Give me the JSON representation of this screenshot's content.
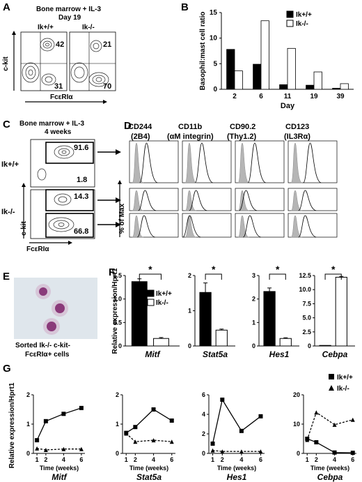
{
  "panel_labels": {
    "A": "A",
    "B": "B",
    "C": "C",
    "D": "D",
    "E": "E",
    "F": "F",
    "G": "G"
  },
  "panelA": {
    "title_line1": "Bone marrow + IL-3",
    "title_line2": "Day 19",
    "wt_label": "Ik+/+",
    "ko_label": "Ik-/-",
    "y_axis": "c-kit",
    "x_axis": "FcεRIα",
    "wt_values": {
      "upper": "42",
      "lower": "31"
    },
    "ko_values": {
      "upper": "21",
      "lower": "70"
    }
  },
  "panelC": {
    "title_line1": "Bone marrow + IL-3",
    "title_line2": "4 weeks",
    "wt_label": "Ik+/+",
    "ko_label": "Ik-/-",
    "y_axis": "c-kit",
    "x_axis": "FcεRIα",
    "wt_values": {
      "gate": "91.6",
      "lower": "1.8"
    },
    "ko_values": {
      "upper": "14.3",
      "lower": "66.8"
    }
  },
  "panelD": {
    "markers": [
      {
        "name": "CD244",
        "sub": "(2B4)"
      },
      {
        "name": "CD11b",
        "sub": "(αM integrin)"
      },
      {
        "name": "CD90.2",
        "sub": "(Thy1.2)"
      },
      {
        "name": "CD123",
        "sub": "(IL3Rα)"
      }
    ],
    "y_axis": "% of Max"
  },
  "panelE": {
    "caption_line1": "Sorted Ik-/- c-kit-",
    "caption_line2": "FcεRIα+ cells"
  },
  "colors": {
    "wt": "#000000",
    "ko": "#ffffff",
    "isotype": "#b5b5b5",
    "cell": "#8a3a7a"
  },
  "chart_data": [
    {
      "type": "bar",
      "panel": "B",
      "categories": [
        "2",
        "6",
        "11",
        "19",
        "39"
      ],
      "series": [
        {
          "name": "Ik+/+",
          "values": [
            7.8,
            4.9,
            0.9,
            0.8,
            0.2
          ]
        },
        {
          "name": "Ik-/-",
          "values": [
            3.6,
            13.4,
            8.0,
            3.4,
            1.1
          ]
        }
      ],
      "xlabel": "Day",
      "ylabel": "Basophil:mast cell ratio",
      "ylim": [
        0,
        15
      ],
      "yticks": [
        "0",
        "5",
        "10",
        "15"
      ]
    },
    {
      "type": "bar",
      "panel": "F",
      "ylabel": "Relative expression/Hprt1",
      "legend": [
        "Ik+/+",
        "Ik-/-"
      ],
      "subplots": [
        {
          "gene": "Mitf",
          "ylim": [
            0,
            1.5
          ],
          "yticks": [
            "0",
            "0.5",
            "1.0",
            "1.5"
          ],
          "values": [
            1.37,
            0.16
          ],
          "errors": [
            0.06,
            0.02
          ],
          "sig": "*"
        },
        {
          "gene": "Stat5a",
          "ylim": [
            0,
            2
          ],
          "yticks": [
            "0",
            "1",
            "2"
          ],
          "values": [
            1.52,
            0.45
          ],
          "errors": [
            0.27,
            0.03
          ],
          "sig": "*"
        },
        {
          "gene": "Hes1",
          "ylim": [
            0,
            3
          ],
          "yticks": [
            "0",
            "1",
            "2",
            "3"
          ],
          "values": [
            2.32,
            0.32
          ],
          "errors": [
            0.15,
            0.03
          ],
          "sig": "*"
        },
        {
          "gene": "Cebpa",
          "ylim": [
            0,
            12.5
          ],
          "yticks": [
            "0",
            "2.5",
            "5.0",
            "7.5",
            "10.0",
            "12.5"
          ],
          "values": [
            0.1,
            12.2
          ],
          "errors": [
            0.0,
            0.15
          ],
          "sig": "*"
        }
      ]
    },
    {
      "type": "line",
      "panel": "G",
      "xlabel": "Time (weeks)",
      "ylabel": "Relative expression/Hprt1",
      "x": [
        1,
        2,
        4,
        6
      ],
      "legend": [
        "Ik+/+",
        "Ik-/-"
      ],
      "subplots": [
        {
          "gene": "Mitf",
          "ylim": [
            0,
            2
          ],
          "yticks": [
            "0",
            "1",
            "2"
          ],
          "wt": [
            0.45,
            1.1,
            1.35,
            1.55
          ],
          "ko": [
            0.17,
            0.12,
            0.15,
            0.15
          ]
        },
        {
          "gene": "Stat5a",
          "ylim": [
            0,
            2
          ],
          "yticks": [
            "0",
            "1",
            "2"
          ],
          "wt": [
            0.7,
            0.9,
            1.5,
            1.12
          ],
          "ko": [
            0.68,
            0.4,
            0.45,
            0.4
          ]
        },
        {
          "gene": "Hes1",
          "ylim": [
            0,
            6
          ],
          "yticks": [
            "0",
            "2",
            "4",
            "6"
          ],
          "wt": [
            1.0,
            5.5,
            2.3,
            3.8
          ],
          "ko": [
            0.3,
            0.2,
            0.2,
            0.2
          ]
        },
        {
          "gene": "Cebpa",
          "ylim": [
            0,
            20
          ],
          "yticks": [
            "0",
            "10",
            "20"
          ],
          "wt": [
            5.0,
            3.8,
            0.3,
            0.2
          ],
          "ko": [
            4.6,
            14.0,
            9.8,
            11.5
          ]
        }
      ]
    }
  ]
}
